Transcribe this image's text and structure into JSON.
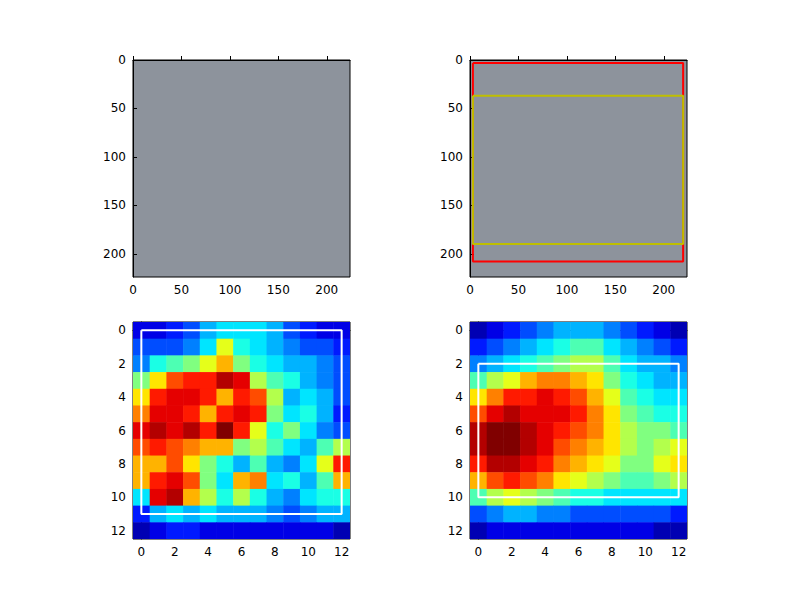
{
  "chart_data": [
    {
      "type": "image",
      "xlim": [
        0,
        224
      ],
      "ylim": [
        224,
        0
      ],
      "xticks": [
        0,
        50,
        100,
        150,
        200
      ],
      "yticks": [
        0,
        50,
        100,
        150,
        200
      ]
    },
    {
      "type": "image",
      "xlim": [
        0,
        224
      ],
      "ylim": [
        224,
        0
      ],
      "xticks": [
        0,
        50,
        100,
        150,
        200
      ],
      "yticks": [
        0,
        50,
        100,
        150,
        200
      ],
      "boxes": [
        {
          "color": "#ff0000",
          "x": [
            3,
            220
          ],
          "y": [
            3,
            208
          ]
        },
        {
          "color": "#bfbf00",
          "x": [
            3,
            220
          ],
          "y": [
            37,
            190
          ]
        }
      ]
    },
    {
      "type": "heatmap",
      "xlim": [
        -0.5,
        12.5
      ],
      "ylim": [
        12.5,
        -0.5
      ],
      "xticks": [
        0,
        2,
        4,
        6,
        8,
        10,
        12
      ],
      "yticks": [
        0,
        2,
        4,
        6,
        8,
        10,
        12
      ],
      "value_range": [
        0,
        1
      ],
      "cells": [
        [
          0.1,
          0.1,
          0.15,
          0.2,
          0.3,
          0.35,
          0.35,
          0.35,
          0.3,
          0.2,
          0.15,
          0.1,
          0.1
        ],
        [
          0.2,
          0.2,
          0.2,
          0.25,
          0.35,
          0.6,
          0.4,
          0.35,
          0.3,
          0.25,
          0.2,
          0.2,
          0.15
        ],
        [
          0.25,
          0.4,
          0.45,
          0.5,
          0.6,
          0.7,
          0.5,
          0.4,
          0.35,
          0.3,
          0.3,
          0.25,
          0.2
        ],
        [
          0.5,
          0.65,
          0.8,
          0.85,
          0.85,
          0.95,
          0.9,
          0.55,
          0.45,
          0.4,
          0.3,
          0.25,
          0.2
        ],
        [
          0.65,
          0.85,
          0.9,
          0.9,
          0.85,
          0.7,
          0.85,
          0.8,
          0.55,
          0.3,
          0.35,
          0.3,
          0.2
        ],
        [
          0.75,
          0.9,
          0.9,
          0.85,
          0.7,
          0.85,
          0.9,
          0.85,
          0.5,
          0.35,
          0.4,
          0.3,
          0.15
        ],
        [
          0.9,
          0.95,
          0.9,
          0.95,
          0.85,
          1.0,
          0.85,
          0.6,
          0.4,
          0.5,
          0.35,
          0.25,
          0.2
        ],
        [
          0.8,
          0.85,
          0.8,
          0.75,
          0.7,
          0.7,
          0.5,
          0.55,
          0.45,
          0.35,
          0.3,
          0.45,
          0.55
        ],
        [
          0.7,
          0.7,
          0.8,
          0.65,
          0.5,
          0.4,
          0.3,
          0.45,
          0.3,
          0.25,
          0.35,
          0.6,
          0.85
        ],
        [
          0.7,
          0.85,
          0.9,
          0.8,
          0.5,
          0.35,
          0.7,
          0.75,
          0.35,
          0.4,
          0.3,
          0.45,
          0.7
        ],
        [
          0.35,
          0.9,
          0.95,
          0.7,
          0.55,
          0.4,
          0.55,
          0.4,
          0.3,
          0.25,
          0.35,
          0.4,
          0.4
        ],
        [
          0.15,
          0.3,
          0.35,
          0.3,
          0.35,
          0.3,
          0.3,
          0.3,
          0.25,
          0.2,
          0.25,
          0.3,
          0.3
        ],
        [
          0.05,
          0.1,
          0.15,
          0.15,
          0.1,
          0.1,
          0.1,
          0.1,
          0.1,
          0.1,
          0.1,
          0.1,
          0.05
        ]
      ],
      "boxes": [
        {
          "color": "#ffffff",
          "x": [
            0,
            12
          ],
          "y": [
            0,
            11
          ]
        }
      ]
    },
    {
      "type": "heatmap",
      "xlim": [
        -0.5,
        12.5
      ],
      "ylim": [
        12.5,
        -0.5
      ],
      "xticks": [
        0,
        2,
        4,
        6,
        8,
        10,
        12
      ],
      "yticks": [
        0,
        2,
        4,
        6,
        8,
        10,
        12
      ],
      "value_range": [
        0,
        1
      ],
      "cells": [
        [
          0.05,
          0.1,
          0.15,
          0.2,
          0.25,
          0.3,
          0.3,
          0.3,
          0.25,
          0.2,
          0.15,
          0.1,
          0.05
        ],
        [
          0.15,
          0.2,
          0.25,
          0.3,
          0.35,
          0.4,
          0.45,
          0.45,
          0.35,
          0.3,
          0.25,
          0.2,
          0.15
        ],
        [
          0.25,
          0.3,
          0.35,
          0.4,
          0.45,
          0.5,
          0.55,
          0.55,
          0.45,
          0.35,
          0.3,
          0.3,
          0.25
        ],
        [
          0.45,
          0.55,
          0.6,
          0.7,
          0.75,
          0.75,
          0.7,
          0.65,
          0.5,
          0.4,
          0.35,
          0.3,
          0.3
        ],
        [
          0.65,
          0.75,
          0.85,
          0.85,
          0.9,
          0.85,
          0.8,
          0.7,
          0.6,
          0.45,
          0.4,
          0.35,
          0.35
        ],
        [
          0.8,
          0.9,
          0.95,
          0.9,
          0.9,
          0.9,
          0.85,
          0.75,
          0.65,
          0.5,
          0.45,
          0.4,
          0.4
        ],
        [
          0.95,
          1.0,
          1.0,
          0.95,
          0.9,
          0.85,
          0.8,
          0.75,
          0.65,
          0.55,
          0.5,
          0.5,
          0.45
        ],
        [
          0.95,
          1.0,
          1.0,
          0.95,
          0.9,
          0.8,
          0.75,
          0.7,
          0.65,
          0.55,
          0.5,
          0.55,
          0.6
        ],
        [
          0.85,
          0.95,
          0.95,
          0.9,
          0.85,
          0.75,
          0.7,
          0.65,
          0.6,
          0.5,
          0.5,
          0.6,
          0.65
        ],
        [
          0.7,
          0.8,
          0.85,
          0.8,
          0.75,
          0.65,
          0.6,
          0.55,
          0.5,
          0.45,
          0.45,
          0.5,
          0.55
        ],
        [
          0.45,
          0.55,
          0.6,
          0.55,
          0.5,
          0.45,
          0.4,
          0.4,
          0.35,
          0.35,
          0.35,
          0.35,
          0.35
        ],
        [
          0.2,
          0.25,
          0.3,
          0.3,
          0.25,
          0.25,
          0.2,
          0.2,
          0.2,
          0.2,
          0.2,
          0.2,
          0.15
        ],
        [
          0.05,
          0.1,
          0.1,
          0.1,
          0.1,
          0.1,
          0.1,
          0.1,
          0.1,
          0.1,
          0.1,
          0.05,
          0.05
        ]
      ],
      "boxes": [
        {
          "color": "#ffffff",
          "x": [
            0,
            12
          ],
          "y": [
            2,
            10
          ]
        }
      ]
    }
  ]
}
